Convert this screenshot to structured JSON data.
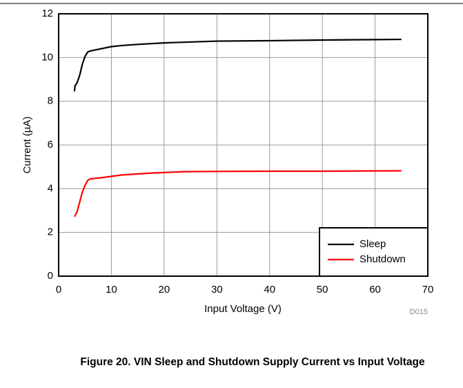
{
  "chart_data": {
    "type": "line",
    "caption": "Figure 20. VIN Sleep and Shutdown Supply Current vs Input Voltage",
    "xlabel": "Input Voltage (V)",
    "ylabel": "Current (µA)",
    "annotation": "D015",
    "xlim": [
      0,
      70
    ],
    "xticks": [
      0,
      10,
      20,
      30,
      40,
      50,
      60,
      70
    ],
    "ylim": [
      0,
      12
    ],
    "yticks": [
      0,
      2,
      4,
      6,
      8,
      10,
      12
    ],
    "grid": true,
    "legend": "lower right",
    "series": [
      {
        "name": "Sleep",
        "color": "#000000",
        "x": [
          3,
          3.1,
          3.5,
          4,
          4.5,
          5,
          5.5,
          6,
          8,
          10,
          12,
          15,
          20,
          30,
          40,
          50,
          60,
          65
        ],
        "values": [
          8.45,
          8.7,
          8.85,
          9.2,
          9.7,
          10.05,
          10.25,
          10.3,
          10.4,
          10.5,
          10.55,
          10.6,
          10.67,
          10.75,
          10.77,
          10.8,
          10.82,
          10.83
        ]
      },
      {
        "name": "Shutdown",
        "color": "#ff0000",
        "x": [
          3,
          3.5,
          4,
          4.5,
          5,
          5.5,
          6,
          8,
          12,
          18,
          24,
          30,
          40,
          50,
          65
        ],
        "values": [
          2.72,
          2.95,
          3.4,
          3.85,
          4.15,
          4.38,
          4.45,
          4.5,
          4.63,
          4.72,
          4.78,
          4.79,
          4.8,
          4.8,
          4.82
        ]
      }
    ]
  }
}
